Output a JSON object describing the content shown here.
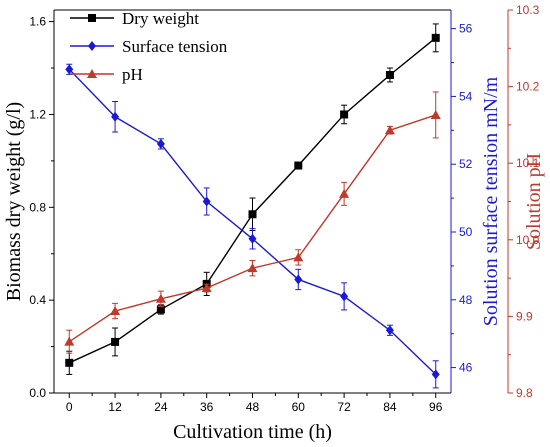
{
  "chart_data": {
    "type": "line",
    "xlabel": "Cultivation time (h)",
    "x": [
      0,
      12,
      24,
      36,
      48,
      60,
      72,
      84,
      96
    ],
    "xlim": [
      -4,
      100
    ],
    "x_ticks": [
      "0",
      "12",
      "24",
      "36",
      "48",
      "60",
      "72",
      "84",
      "96"
    ],
    "grid": false,
    "legend_position": "top-left",
    "axes": {
      "left": {
        "label": "Biomass dry weight (g/l)",
        "ylim": [
          0.0,
          1.65
        ],
        "ticks": [
          "0.0",
          "0.4",
          "0.8",
          "1.2",
          "1.6"
        ],
        "color": "#000000"
      },
      "right_inner": {
        "label": "Solution surface tension mN/m",
        "ylim": [
          45.25,
          56.55
        ],
        "ticks": [
          "46",
          "48",
          "50",
          "52",
          "54",
          "56"
        ],
        "color": "#1a1ad6"
      },
      "right_outer": {
        "label": "Solution pH",
        "ylim": [
          9.8,
          10.3
        ],
        "ticks": [
          "9.8",
          "9.9",
          "10.0",
          "10.1",
          "10.2",
          "10.3"
        ],
        "color": "#c0392b"
      }
    },
    "series": [
      {
        "name": "Dry weight",
        "axis": "left",
        "color": "#000000",
        "marker": "square",
        "values": [
          0.13,
          0.22,
          0.36,
          0.47,
          0.77,
          0.98,
          1.2,
          1.37,
          1.53
        ],
        "errors": [
          0.05,
          0.06,
          0.02,
          0.05,
          0.07,
          0.01,
          0.04,
          0.03,
          0.06
        ]
      },
      {
        "name": "Surface tension",
        "axis": "right_inner",
        "color": "#1a1ad6",
        "marker": "diamond",
        "values": [
          54.8,
          53.4,
          52.6,
          50.9,
          49.8,
          48.6,
          48.1,
          47.1,
          45.8
        ],
        "errors": [
          0.15,
          0.45,
          0.15,
          0.4,
          0.3,
          0.3,
          0.4,
          0.15,
          0.4
        ]
      },
      {
        "name": "pH",
        "axis": "right_outer",
        "color": "#c0392b",
        "marker": "triangle",
        "values": [
          9.867,
          9.907,
          9.923,
          9.937,
          9.963,
          9.977,
          10.06,
          10.143,
          10.163
        ],
        "errors": [
          0.015,
          0.01,
          0.01,
          0.005,
          0.01,
          0.01,
          0.015,
          0.005,
          0.03
        ]
      }
    ]
  }
}
